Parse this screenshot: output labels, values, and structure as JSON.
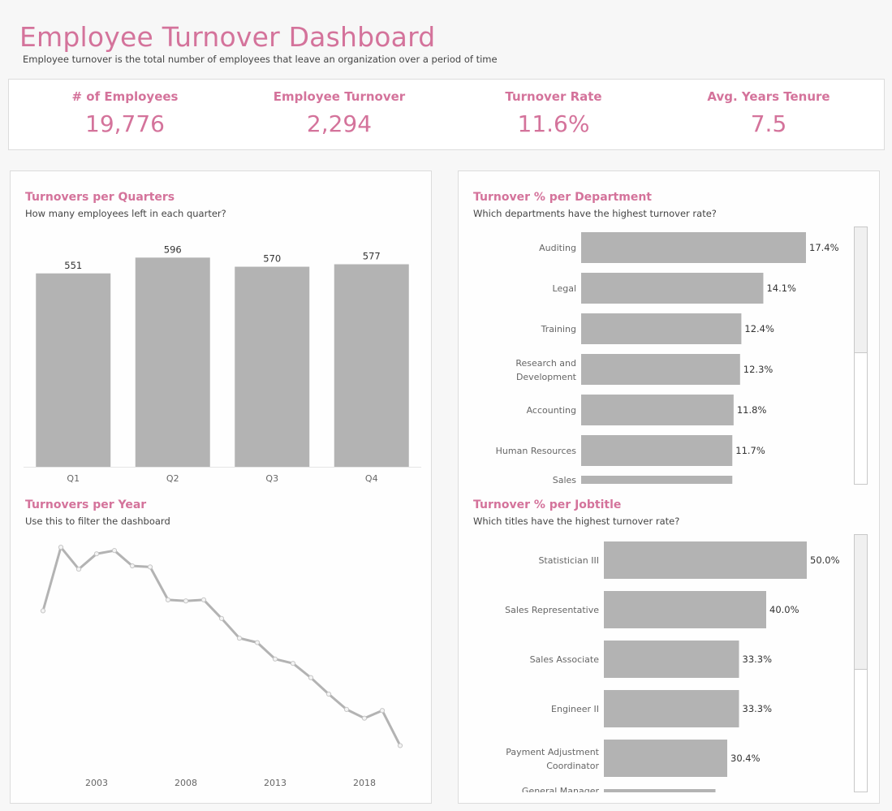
{
  "header": {
    "title": "Employee Turnover Dashboard",
    "subtitle": "Employee turnover is the total number of employees that leave an organization over a period of time"
  },
  "kpis": [
    {
      "label": "# of Employees",
      "value": "19,776"
    },
    {
      "label": "Employee Turnover",
      "value": "2,294"
    },
    {
      "label": "Turnover Rate",
      "value": "11.6%"
    },
    {
      "label": "Avg. Years Tenure",
      "value": "7.5"
    }
  ],
  "colors": {
    "accent": "#d4739b",
    "bar": "#b3b3b3",
    "line": "#b3b3b3"
  },
  "chart_data": [
    {
      "type": "bar",
      "title": "Turnovers per Quarters",
      "subtitle": "How many employees left in each quarter?",
      "categories": [
        "Q1",
        "Q2",
        "Q3",
        "Q4"
      ],
      "values": [
        551,
        596,
        570,
        577
      ],
      "ylim": [
        0,
        680
      ]
    },
    {
      "type": "line",
      "title": "Turnovers per Year",
      "subtitle": "Use this to filter the dashboard",
      "x": [
        2000,
        2001,
        2002,
        2003,
        2004,
        2005,
        2006,
        2007,
        2008,
        2009,
        2010,
        2011,
        2012,
        2013,
        2014,
        2015,
        2016,
        2017,
        2018,
        2019,
        2020
      ],
      "values": [
        96,
        154,
        134,
        148,
        151,
        137,
        136,
        106,
        105,
        106,
        89,
        71,
        67,
        52,
        48,
        35,
        20,
        6,
        -2,
        5,
        -27
      ],
      "xticks": [
        "2003",
        "2008",
        "2013",
        "2018"
      ],
      "xtick_values": [
        2003,
        2008,
        2013,
        2018
      ]
    },
    {
      "type": "bar",
      "orientation": "horizontal",
      "title": "Turnover % per Department",
      "subtitle": "Which departments have the highest turnover rate?",
      "categories": [
        "Auditing",
        "Legal",
        "Training",
        "Research and Development",
        "Accounting",
        "Human Resources",
        "Sales"
      ],
      "values": [
        17.4,
        14.1,
        12.4,
        12.3,
        11.8,
        11.7,
        11.7
      ],
      "labels": [
        "17.4%",
        "14.1%",
        "12.4%",
        "12.3%",
        "11.8%",
        "11.7%",
        ""
      ],
      "xlim": [
        0,
        17.4
      ]
    },
    {
      "type": "bar",
      "orientation": "horizontal",
      "title": "Turnover % per Jobtitle",
      "subtitle": "Which titles have the highest turnover rate?",
      "categories": [
        "Statistician III",
        "Sales Representative",
        "Sales Associate",
        "Engineer II",
        "Payment Adjustment Coordinator",
        "General Manager"
      ],
      "values": [
        50.0,
        40.0,
        33.3,
        33.3,
        30.4,
        27.5
      ],
      "labels": [
        "50.0%",
        "40.0%",
        "33.3%",
        "33.3%",
        "30.4%",
        ""
      ],
      "xlim": [
        0,
        50
      ]
    }
  ]
}
